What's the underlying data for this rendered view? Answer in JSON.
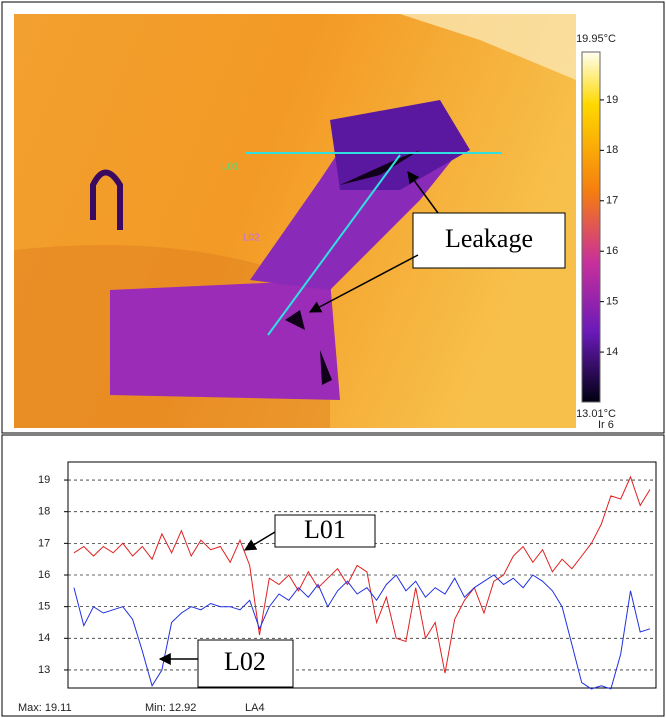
{
  "thermal_image": {
    "line_labels": [
      "L01",
      "L02"
    ],
    "annotation": "Leakage",
    "palette": "Ir 6",
    "colorbar": {
      "lim": [
        13.01,
        19.95
      ],
      "ticks": [
        {
          "value": 19.95,
          "label": "19.95°C"
        },
        19,
        18,
        17,
        16,
        15,
        14,
        {
          "value": 13.01,
          "label": "13.01°C"
        }
      ]
    }
  },
  "chart_data": {
    "type": "line",
    "ylim": [
      12.43,
      19.57
    ],
    "yticks": [
      13,
      14,
      15,
      16,
      17,
      18,
      19
    ],
    "grid": true,
    "annotations": [
      "L01",
      "L02"
    ],
    "series": [
      {
        "name": "L01",
        "color": "#e02020",
        "values": [
          16.7,
          16.9,
          16.6,
          16.9,
          16.7,
          17.0,
          16.6,
          16.9,
          16.5,
          17.3,
          16.7,
          17.4,
          16.6,
          17.1,
          16.8,
          16.9,
          16.4,
          17.1,
          16.3,
          14.1,
          15.9,
          15.7,
          16.0,
          15.5,
          16.1,
          15.6,
          15.9,
          16.2,
          15.7,
          16.3,
          16.1,
          14.5,
          15.3,
          14.0,
          13.9,
          15.6,
          14.0,
          14.5,
          12.9,
          14.6,
          15.2,
          15.6,
          14.8,
          15.8,
          16.0,
          16.6,
          16.9,
          16.4,
          16.8,
          16.1,
          16.5,
          16.2,
          16.6,
          17.0,
          17.6,
          18.5,
          18.4,
          19.1,
          18.2,
          18.7
        ]
      },
      {
        "name": "L02",
        "color": "#2030e0",
        "values": [
          15.6,
          14.4,
          15.0,
          14.8,
          14.9,
          15.0,
          14.6,
          13.6,
          12.5,
          13.0,
          14.5,
          14.8,
          15.0,
          14.9,
          15.1,
          15.0,
          15.0,
          14.9,
          15.2,
          14.3,
          15.0,
          15.4,
          15.2,
          15.6,
          15.3,
          15.7,
          15.0,
          15.5,
          15.8,
          15.4,
          15.6,
          15.2,
          15.7,
          16.0,
          15.5,
          15.8,
          15.3,
          15.6,
          15.4,
          15.9,
          15.3,
          15.6,
          15.8,
          16.0,
          15.7,
          15.9,
          15.6,
          16.0,
          15.8,
          15.5,
          15.0,
          13.8,
          12.6,
          12.4,
          12.5,
          12.4,
          13.5,
          15.5,
          14.2,
          14.3
        ]
      }
    ],
    "footer": [
      "Max:  19.11",
      "Min:  12.92",
      "LA4"
    ]
  }
}
